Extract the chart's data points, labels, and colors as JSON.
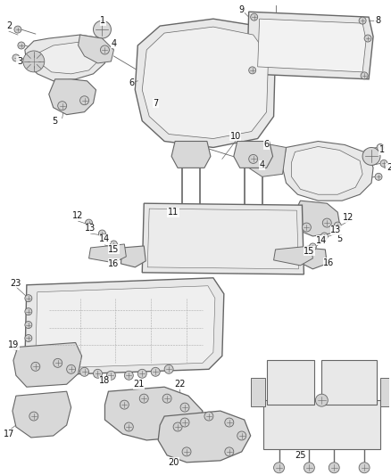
{
  "bg_color": "#ffffff",
  "line_color": "#666666",
  "label_color": "#111111",
  "figsize": [
    4.38,
    5.33
  ],
  "dpi": 100
}
